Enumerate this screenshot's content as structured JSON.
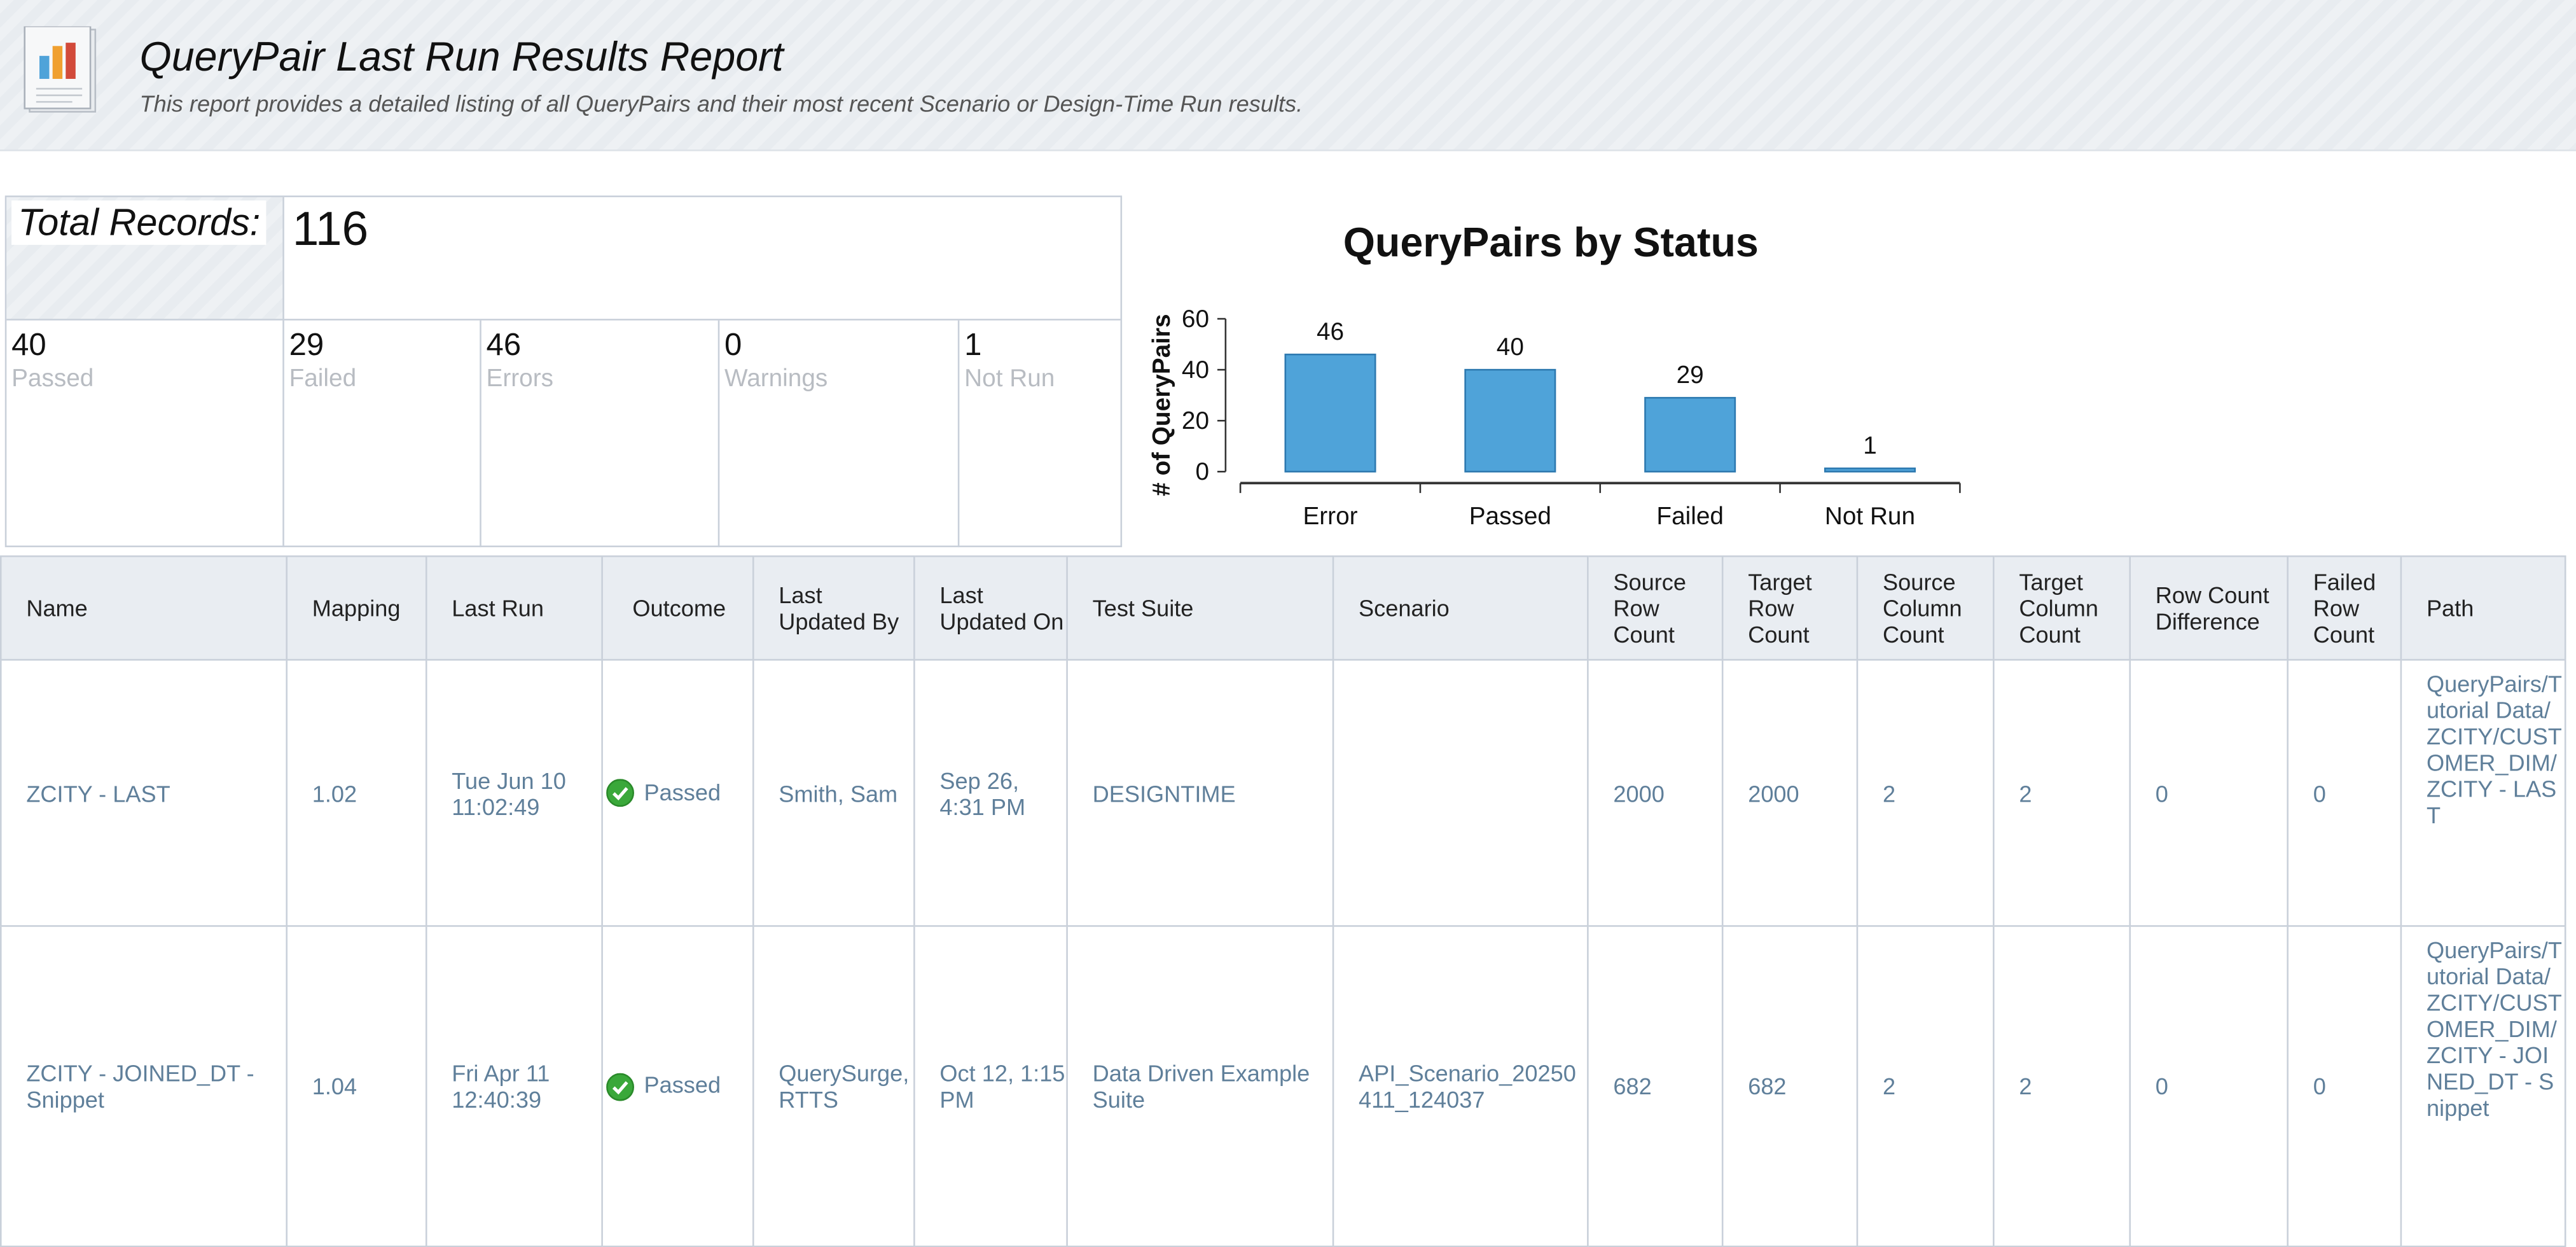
{
  "header": {
    "title": "QueryPair Last Run Results Report",
    "subtitle": "This report provides a detailed listing of all QueryPairs and their most recent Scenario or Design-Time Run results.",
    "icon": "report-chart-icon"
  },
  "summary": {
    "total_label": "Total Records:",
    "total_value": "116",
    "stats": [
      {
        "value": "40",
        "label": "Passed"
      },
      {
        "value": "29",
        "label": "Failed"
      },
      {
        "value": "46",
        "label": "Errors"
      },
      {
        "value": "0",
        "label": "Warnings"
      },
      {
        "value": "1",
        "label": "Not Run"
      }
    ]
  },
  "chart_data": {
    "type": "bar",
    "title": "QueryPairs by Status",
    "xlabel": "",
    "ylabel": "# of QueryPairs",
    "categories": [
      "Error",
      "Passed",
      "Failed",
      "Not Run"
    ],
    "values": [
      46,
      40,
      29,
      1
    ],
    "ylim": [
      0,
      60
    ],
    "yticks": [
      0,
      20,
      40,
      60
    ],
    "bar_color": "#4fa3d9",
    "grid": false,
    "legend": "none"
  },
  "table": {
    "columns": [
      "Name",
      "Mapping",
      "Last Run",
      "Outcome",
      "Last Updated By",
      "Last Updated On",
      "Test Suite",
      "Scenario",
      "Source Row Count",
      "Target Row Count",
      "Source Column Count",
      "Target Column Count",
      "Row Count Difference",
      "Failed Row Count",
      "Path"
    ],
    "rows": [
      {
        "name": "ZCITY - LAST",
        "mapping": "1.02",
        "last_run": "Tue Jun 10 11:02:49",
        "outcome": "Passed",
        "last_updated_by": "Smith, Sam",
        "last_updated_on": "Sep 26, 4:31 PM",
        "test_suite": "DESIGNTIME",
        "scenario": "",
        "source_row_count": "2000",
        "target_row_count": "2000",
        "source_column_count": "2",
        "target_column_count": "2",
        "row_count_difference": "0",
        "failed_row_count": "0",
        "path": "QueryPairs/Tutorial Data/ZCITY/CUSTOMER_DIM/ZCITY - LAST"
      },
      {
        "name": "ZCITY - JOINED_DT - Snippet",
        "mapping": "1.04",
        "last_run": "Fri Apr 11 12:40:39",
        "outcome": "Passed",
        "last_updated_by": "QuerySurge, RTTS",
        "last_updated_on": "Oct 12, 1:15 PM",
        "test_suite": "Data Driven Example Suite",
        "scenario": "API_Scenario_20250411_124037",
        "source_row_count": "682",
        "target_row_count": "682",
        "source_column_count": "2",
        "target_column_count": "2",
        "row_count_difference": "0",
        "failed_row_count": "0",
        "path": "QueryPairs/Tutorial Data/ZCITY/CUSTOMER_DIM/ZCITY - JOINED_DT - Snippet"
      }
    ],
    "outcome_icon": "check-circle-icon",
    "outcome_color": "#3aa83a"
  }
}
